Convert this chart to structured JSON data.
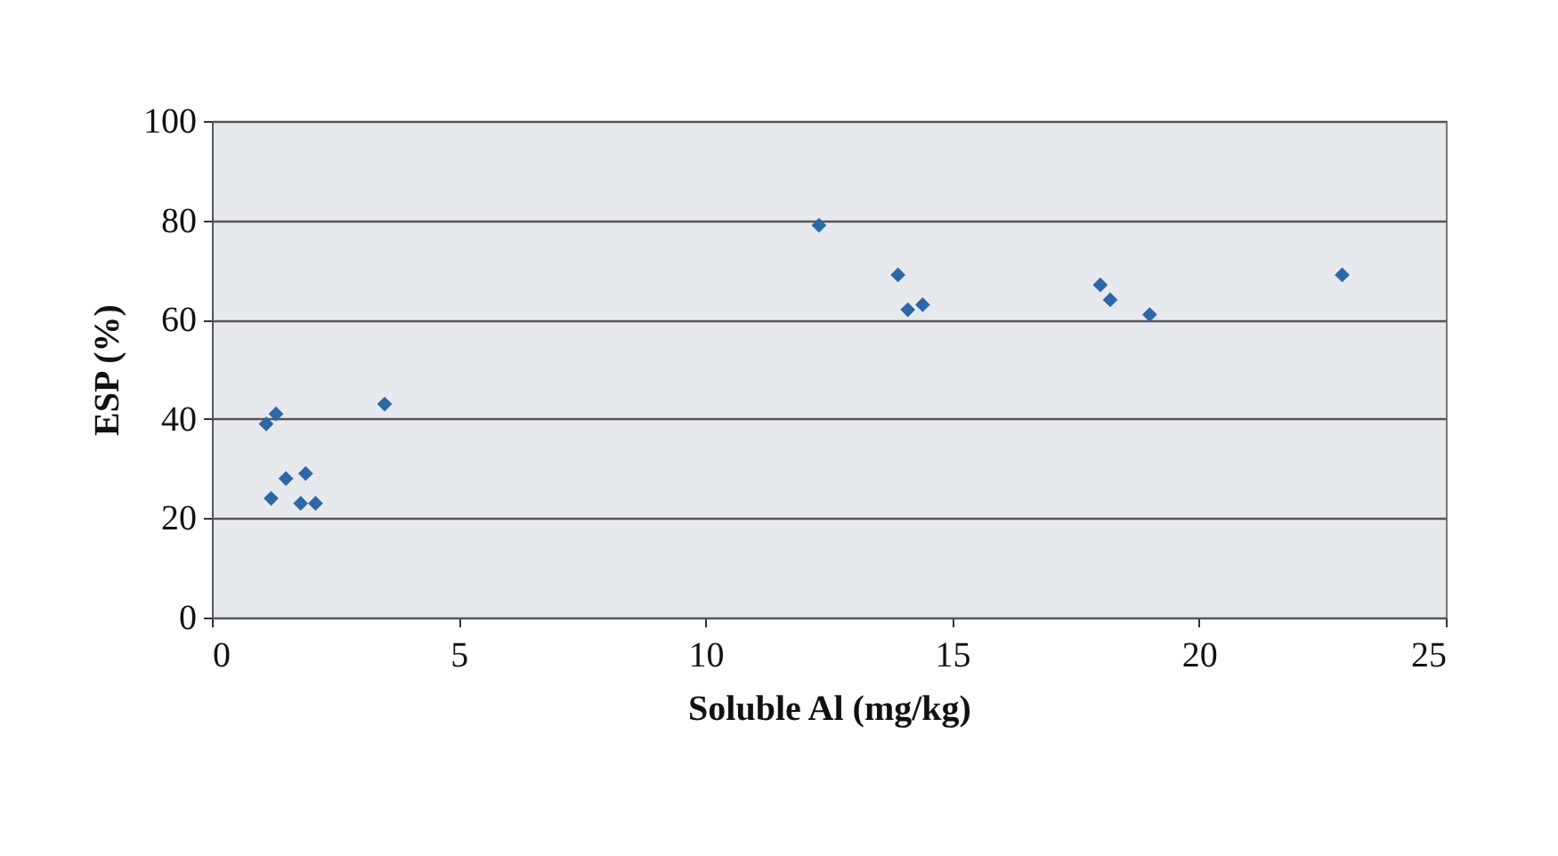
{
  "chart_data": {
    "type": "scatter",
    "xlabel": "Soluble Al (mg/kg)",
    "ylabel": "ESP (%)",
    "x": [
      1.1,
      1.3,
      1.2,
      1.5,
      1.9,
      1.8,
      2.1,
      3.5,
      12.3,
      13.9,
      14.1,
      14.4,
      18.0,
      18.2,
      19.0,
      22.9
    ],
    "series": [
      {
        "color": "#2e67a6",
        "values": [
          39,
          41,
          24,
          28,
          29,
          23,
          23,
          43,
          79,
          69,
          62,
          63,
          67,
          64,
          61,
          69
        ]
      }
    ],
    "xlim": [
      0,
      25
    ],
    "xticks": [
      0,
      5,
      10,
      15,
      20,
      25
    ],
    "ylim": [
      0,
      100
    ],
    "yticks": [
      0,
      20,
      40,
      60,
      80,
      100
    ],
    "grid": "y",
    "marker": "diamond"
  }
}
